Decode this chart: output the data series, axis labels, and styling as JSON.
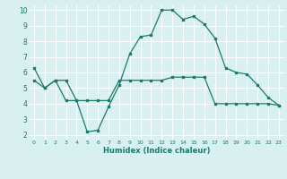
{
  "line1_x": [
    0,
    1,
    2,
    3,
    4,
    5,
    6,
    7,
    8,
    9,
    10,
    11,
    12,
    13,
    14,
    15,
    16,
    17,
    18,
    19,
    20,
    21,
    22,
    23
  ],
  "line1_y": [
    6.3,
    5.0,
    5.5,
    5.5,
    4.2,
    2.2,
    2.3,
    3.8,
    5.2,
    7.2,
    8.3,
    8.4,
    10.0,
    10.0,
    9.4,
    9.6,
    9.1,
    8.2,
    6.3,
    6.0,
    5.9,
    5.2,
    4.4,
    3.9
  ],
  "line2_x": [
    0,
    1,
    2,
    3,
    4,
    5,
    6,
    7,
    8,
    9,
    10,
    11,
    12,
    13,
    14,
    15,
    16,
    17,
    18,
    19,
    20,
    21,
    22,
    23
  ],
  "line2_y": [
    5.5,
    5.0,
    5.5,
    4.2,
    4.2,
    4.2,
    4.2,
    4.2,
    5.5,
    5.5,
    5.5,
    5.5,
    5.5,
    5.7,
    5.7,
    5.7,
    5.7,
    4.0,
    4.0,
    4.0,
    4.0,
    4.0,
    4.0,
    3.9
  ],
  "line_color": "#1a7a6e",
  "bg_color": "#d8f0f0",
  "grid_color": "#ffffff",
  "xlabel": "Humidex (Indice chaleur)",
  "xlim": [
    -0.5,
    23.5
  ],
  "ylim": [
    1.7,
    10.3
  ],
  "yticks": [
    2,
    3,
    4,
    5,
    6,
    7,
    8,
    9,
    10
  ],
  "xticks": [
    0,
    1,
    2,
    3,
    4,
    5,
    6,
    7,
    8,
    9,
    10,
    11,
    12,
    13,
    14,
    15,
    16,
    17,
    18,
    19,
    20,
    21,
    22,
    23
  ],
  "xtick_labels": [
    "0",
    "1",
    "2",
    "3",
    "4",
    "5",
    "6",
    "7",
    "8",
    "9",
    "10",
    "11",
    "12",
    "13",
    "14",
    "15",
    "16",
    "17",
    "18",
    "19",
    "20",
    "21",
    "22",
    "23"
  ]
}
